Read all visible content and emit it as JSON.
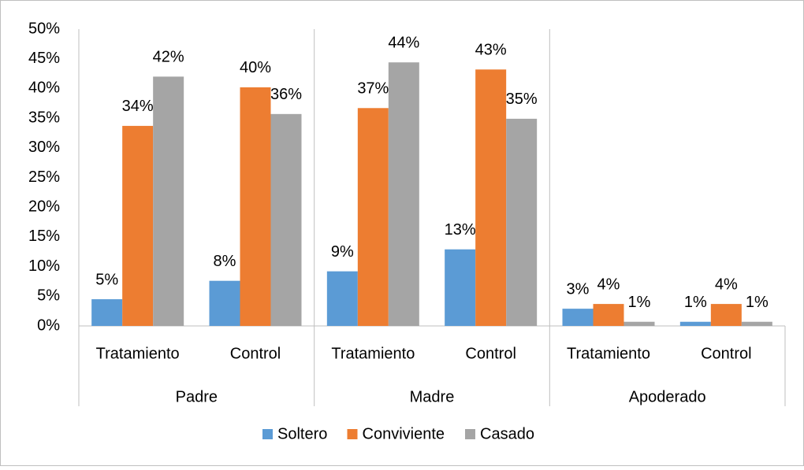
{
  "chart_data": {
    "type": "bar",
    "groups": [
      {
        "label": "Padre",
        "categories": [
          "Tratamiento",
          "Control"
        ]
      },
      {
        "label": "Madre",
        "categories": [
          "Tratamiento",
          "Control"
        ]
      },
      {
        "label": "Apoderado",
        "categories": [
          "Tratamiento",
          "Control"
        ]
      }
    ],
    "series": [
      {
        "name": "Soltero",
        "color": "#5b9bd5",
        "values": [
          4.5,
          7.6,
          9.2,
          12.9,
          2.9,
          0.7
        ],
        "value_labels": [
          "5%",
          "8%",
          "9%",
          "13%",
          "3%",
          "1%"
        ]
      },
      {
        "name": "Conviviente",
        "color": "#ed7d31",
        "values": [
          33.7,
          40.2,
          36.7,
          43.2,
          3.7,
          3.7
        ],
        "value_labels": [
          "34%",
          "40%",
          "37%",
          "43%",
          "4%",
          "4%"
        ]
      },
      {
        "name": "Casado",
        "color": "#a5a5a5",
        "values": [
          42.0,
          35.7,
          44.4,
          34.9,
          0.7,
          0.7
        ],
        "value_labels": [
          "42%",
          "36%",
          "44%",
          "35%",
          "1%",
          "1%"
        ]
      }
    ],
    "ylim": [
      0,
      50
    ],
    "yticks": [
      {
        "value": 0,
        "label": "0%"
      },
      {
        "value": 5,
        "label": "5%"
      },
      {
        "value": 10,
        "label": "10%"
      },
      {
        "value": 15,
        "label": "15%"
      },
      {
        "value": 20,
        "label": "20%"
      },
      {
        "value": 25,
        "label": "25%"
      },
      {
        "value": 30,
        "label": "30%"
      },
      {
        "value": 35,
        "label": "35%"
      },
      {
        "value": 40,
        "label": "40%"
      },
      {
        "value": 45,
        "label": "45%"
      },
      {
        "value": 50,
        "label": "50%"
      }
    ],
    "grid": false,
    "legend": "bottom"
  }
}
